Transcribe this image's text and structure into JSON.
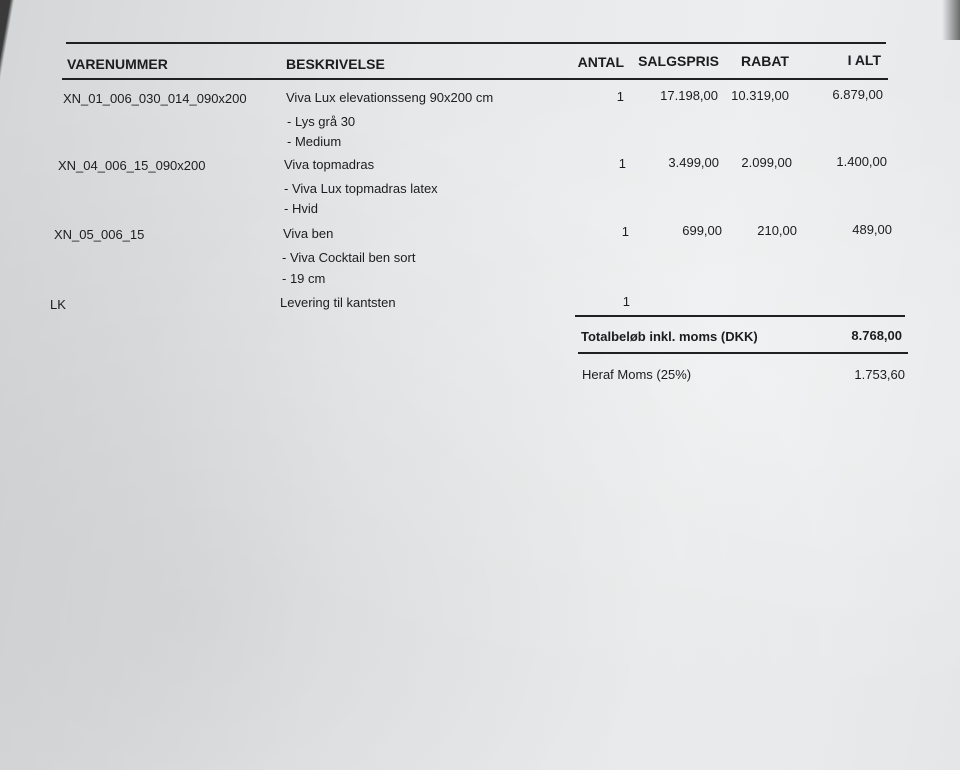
{
  "table": {
    "headers": {
      "varenummer": "VARENUMMER",
      "beskrivelse": "BESKRIVELSE",
      "antal": "ANTAL",
      "salgspris": "SALGSPRIS",
      "rabat": "RABAT",
      "i_alt": "I ALT"
    },
    "rows": [
      {
        "varenummer": "XN_01_006_030_014_090x200",
        "beskrivelse": "Viva Lux elevationsseng 90x200 cm",
        "details": [
          "- Lys grå 30",
          "- Medium"
        ],
        "antal": "1",
        "salgspris": "17.198,00",
        "rabat": "10.319,00",
        "i_alt": "6.879,00"
      },
      {
        "varenummer": "XN_04_006_15_090x200",
        "beskrivelse": "Viva topmadras",
        "details": [
          "- Viva Lux topmadras latex",
          "- Hvid"
        ],
        "antal": "1",
        "salgspris": "3.499,00",
        "rabat": "2.099,00",
        "i_alt": "1.400,00"
      },
      {
        "varenummer": "XN_05_006_15",
        "beskrivelse": "Viva ben",
        "details": [
          "- Viva Cocktail ben sort",
          "- 19 cm"
        ],
        "antal": "1",
        "salgspris": "699,00",
        "rabat": "210,00",
        "i_alt": "489,00"
      },
      {
        "varenummer": "LK",
        "beskrivelse": "Levering til kantsten",
        "antal": "1"
      }
    ]
  },
  "totals": {
    "total_label": "Totalbeløb inkl. moms (DKK)",
    "total_value": "8.768,00",
    "vat_label": "Heraf Moms (25%)",
    "vat_value": "1.753,60"
  }
}
